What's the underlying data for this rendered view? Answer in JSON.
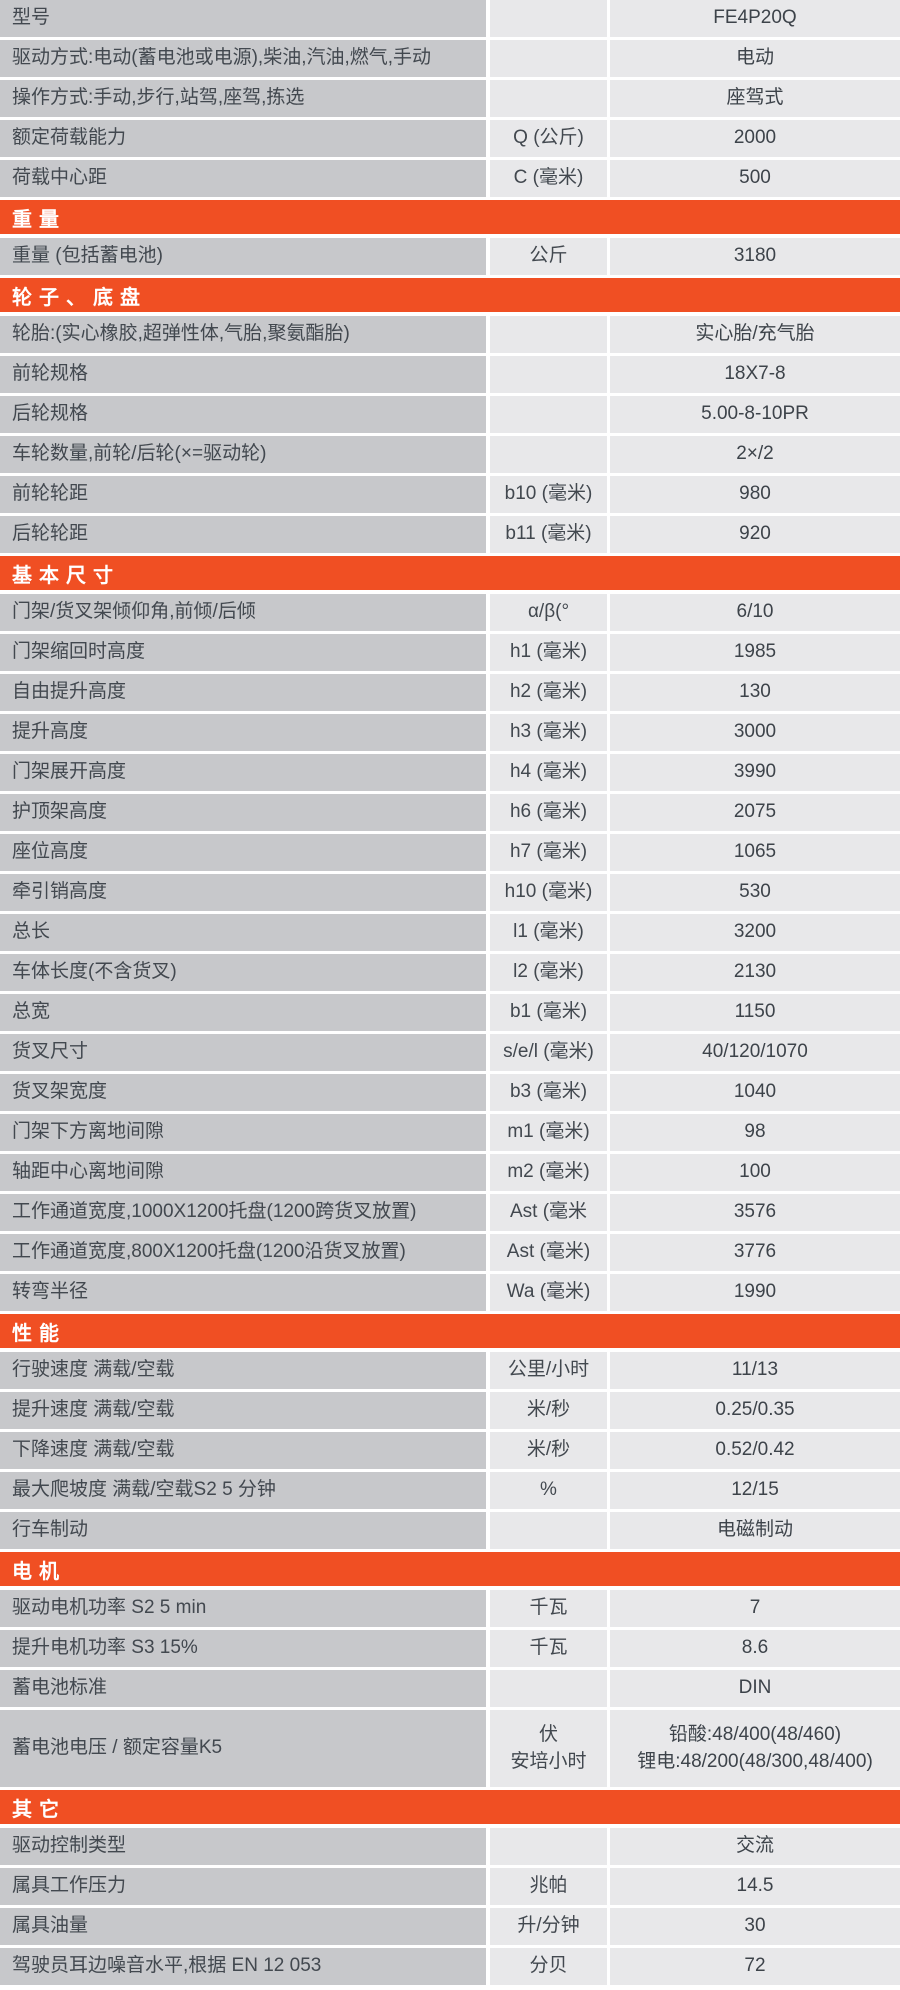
{
  "accent_color": "#f04f23",
  "label_cell_color": "#c7c8cb",
  "value_cell_color": "#e8e8ea",
  "model_name": "FE4P20Q",
  "table": {
    "sections": [
      {
        "header": "",
        "rows": [
          {
            "label": "型号",
            "unit": "",
            "value": "FE4P20Q"
          },
          {
            "label": "驱动方式:电动(蓄电池或电源),柴油,汽油,燃气,手动",
            "unit": "",
            "value": "电动"
          },
          {
            "label": "操作方式:手动,步行,站驾,座驾,拣选",
            "unit": "",
            "value": "座驾式"
          },
          {
            "label": "额定荷载能力",
            "unit": "Q (公斤)",
            "value": "2000"
          },
          {
            "label": "荷载中心距",
            "unit": "C (毫米)",
            "value": "500"
          }
        ]
      },
      {
        "header": "重量",
        "rows": [
          {
            "label": "重量 (包括蓄电池)",
            "unit": "公斤",
            "value": "3180"
          }
        ]
      },
      {
        "header": "轮子、底盘",
        "rows": [
          {
            "label": "轮胎:(实心橡胶,超弹性体,气胎,聚氨酯胎)",
            "unit": "",
            "value": "实心胎/充气胎"
          },
          {
            "label": "前轮规格",
            "unit": "",
            "value": "18X7-8"
          },
          {
            "label": "后轮规格",
            "unit": "",
            "value": "5.00-8-10PR"
          },
          {
            "label": "车轮数量,前轮/后轮(×=驱动轮)",
            "unit": "",
            "value": "2×/2"
          },
          {
            "label": "前轮轮距",
            "unit": "b10 (毫米)",
            "value": "980"
          },
          {
            "label": "后轮轮距",
            "unit": "b11 (毫米)",
            "value": "920"
          }
        ]
      },
      {
        "header": "基本尺寸",
        "rows": [
          {
            "label": "门架/货叉架倾仰角,前倾/后倾",
            "unit": "α/β(°",
            "value": "6/10"
          },
          {
            "label": "门架缩回时高度",
            "unit": "h1 (毫米)",
            "value": "1985"
          },
          {
            "label": "自由提升高度",
            "unit": "h2 (毫米)",
            "value": "130"
          },
          {
            "label": "提升高度",
            "unit": "h3 (毫米)",
            "value": "3000"
          },
          {
            "label": "门架展开高度",
            "unit": "h4 (毫米)",
            "value": "3990"
          },
          {
            "label": "护顶架高度",
            "unit": "h6 (毫米)",
            "value": "2075"
          },
          {
            "label": "座位高度",
            "unit": "h7 (毫米)",
            "value": "1065"
          },
          {
            "label": "牵引销高度",
            "unit": "h10 (毫米)",
            "value": "530"
          },
          {
            "label": "总长",
            "unit": "l1 (毫米)",
            "value": "3200"
          },
          {
            "label": "车体长度(不含货叉)",
            "unit": "l2 (毫米)",
            "value": "2130"
          },
          {
            "label": "总宽",
            "unit": "b1 (毫米)",
            "value": "1150"
          },
          {
            "label": "货叉尺寸",
            "unit": "s/e/l (毫米)",
            "value": "40/120/1070"
          },
          {
            "label": "货叉架宽度",
            "unit": "b3 (毫米)",
            "value": "1040"
          },
          {
            "label": "门架下方离地间隙",
            "unit": "m1 (毫米)",
            "value": "98"
          },
          {
            "label": "轴距中心离地间隙",
            "unit": "m2 (毫米)",
            "value": "100"
          },
          {
            "label": "工作通道宽度,1000X1200托盘(1200跨货叉放置)",
            "unit": "Ast (毫米",
            "value": "3576"
          },
          {
            "label": "工作通道宽度,800X1200托盘(1200沿货叉放置)",
            "unit": "Ast (毫米)",
            "value": "3776"
          },
          {
            "label": "转弯半径",
            "unit": "Wa (毫米)",
            "value": "1990"
          }
        ]
      },
      {
        "header": "性能",
        "rows": [
          {
            "label": "行驶速度 满载/空载",
            "unit": "公里/小时",
            "value": "11/13"
          },
          {
            "label": "提升速度 满载/空载",
            "unit": "米/秒",
            "value": "0.25/0.35"
          },
          {
            "label": "下降速度 满载/空载",
            "unit": "米/秒",
            "value": "0.52/0.42"
          },
          {
            "label": "最大爬坡度 满载/空载S2 5 分钟",
            "unit": "%",
            "value": "12/15"
          },
          {
            "label": "行车制动",
            "unit": "",
            "value": "电磁制动"
          }
        ]
      },
      {
        "header": "电机",
        "rows": [
          {
            "label": "驱动电机功率 S2 5 min",
            "unit": "千瓦",
            "value": "7"
          },
          {
            "label": "提升电机功率 S3 15%",
            "unit": "千瓦",
            "value": "8.6"
          },
          {
            "label": "蓄电池标准",
            "unit": "",
            "value": "DIN"
          },
          {
            "label": "蓄电池电压 / 额定容量K5",
            "unit": "伏\n安培小时",
            "value": "铅酸:48/400(48/460)\n锂电:48/200(48/300,48/400)",
            "tall": true
          }
        ]
      },
      {
        "header": "其它",
        "rows": [
          {
            "label": "驱动控制类型",
            "unit": "",
            "value": "交流"
          },
          {
            "label": "属具工作压力",
            "unit": "兆帕",
            "value": "14.5"
          },
          {
            "label": "属具油量",
            "unit": "升/分钟",
            "value": "30"
          },
          {
            "label": "驾驶员耳边噪音水平,根据 EN 12 053",
            "unit": "分贝",
            "value": "72"
          }
        ]
      }
    ]
  }
}
